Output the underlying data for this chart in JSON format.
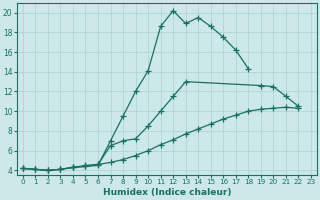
{
  "xlabel": "Humidex (Indice chaleur)",
  "background_color": "#cce8e8",
  "grid_color": "#aed0d0",
  "line_color": "#1a7060",
  "xlim": [
    -0.5,
    23.5
  ],
  "ylim": [
    3.5,
    21
  ],
  "xticks": [
    0,
    1,
    2,
    3,
    4,
    5,
    6,
    7,
    8,
    9,
    10,
    11,
    12,
    13,
    14,
    15,
    16,
    17,
    18,
    19,
    20,
    21,
    22,
    23
  ],
  "yticks": [
    4,
    6,
    8,
    10,
    12,
    14,
    16,
    18,
    20
  ],
  "line1_x": [
    0,
    1,
    2,
    3,
    4,
    5,
    6,
    7,
    8,
    9,
    10,
    11,
    12,
    13,
    14,
    15,
    16,
    17,
    18
  ],
  "line1_y": [
    4.2,
    4.1,
    4.0,
    4.1,
    4.3,
    4.4,
    4.5,
    7.0,
    9.5,
    12.0,
    14.1,
    18.6,
    20.2,
    18.9,
    19.5,
    18.6,
    17.5,
    16.2,
    14.3
  ],
  "line2_x": [
    0,
    1,
    2,
    3,
    4,
    5,
    6,
    7,
    8,
    9,
    10,
    11,
    12,
    13,
    19,
    20,
    21,
    22
  ],
  "line2_y": [
    4.2,
    4.1,
    4.0,
    4.1,
    4.3,
    4.5,
    4.6,
    6.5,
    7.0,
    7.2,
    8.5,
    10.0,
    11.5,
    13.0,
    12.6,
    12.5,
    11.5,
    10.5
  ],
  "line3_x": [
    0,
    1,
    2,
    3,
    4,
    5,
    6,
    7,
    8,
    9,
    10,
    11,
    12,
    13,
    14,
    15,
    16,
    17,
    18,
    19,
    20,
    21,
    22
  ],
  "line3_y": [
    4.2,
    4.1,
    4.0,
    4.1,
    4.3,
    4.4,
    4.6,
    4.8,
    5.1,
    5.5,
    6.0,
    6.6,
    7.1,
    7.7,
    8.2,
    8.7,
    9.2,
    9.6,
    10.0,
    10.2,
    10.3,
    10.4,
    10.3
  ]
}
